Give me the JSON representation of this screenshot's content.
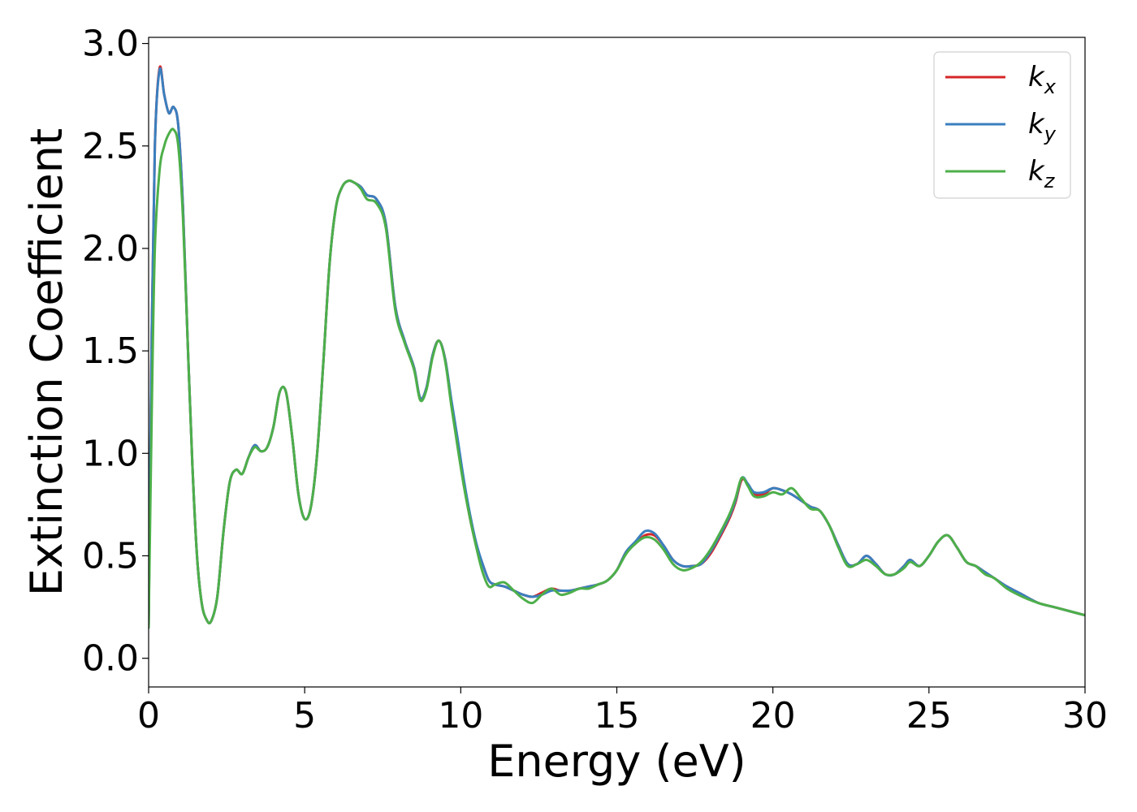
{
  "chart_data": {
    "type": "line",
    "xlabel": "Energy (eV)",
    "ylabel": "Extinction Coefficient",
    "xlim": [
      0,
      30
    ],
    "ylim": [
      -0.14,
      3.03
    ],
    "xticks": [
      0,
      5,
      10,
      15,
      20,
      25,
      30
    ],
    "xtick_labels": [
      "0",
      "5",
      "10",
      "15",
      "20",
      "25",
      "30"
    ],
    "yticks": [
      0.0,
      0.5,
      1.0,
      1.5,
      2.0,
      2.5,
      3.0
    ],
    "ytick_labels": [
      "0.0",
      "0.5",
      "1.0",
      "1.5",
      "2.0",
      "2.5",
      "3.0"
    ],
    "grid": false,
    "legend_position": "top-right",
    "series": [
      {
        "name": "k_x",
        "label_main": "k",
        "label_sub": "x",
        "color": "#d62728",
        "x": [
          0,
          0.1,
          0.2,
          0.35,
          0.5,
          0.65,
          0.8,
          0.95,
          1.1,
          1.25,
          1.4,
          1.55,
          1.7,
          1.85,
          2.0,
          2.2,
          2.4,
          2.6,
          2.8,
          3.0,
          3.2,
          3.4,
          3.6,
          3.8,
          4.0,
          4.2,
          4.4,
          4.6,
          4.8,
          5.0,
          5.2,
          5.4,
          5.6,
          5.8,
          6.0,
          6.2,
          6.4,
          6.6,
          6.8,
          7.0,
          7.3,
          7.6,
          7.9,
          8.2,
          8.5,
          8.7,
          8.9,
          9.1,
          9.3,
          9.5,
          9.7,
          9.9,
          10.1,
          10.3,
          10.5,
          10.7,
          10.9,
          11.1,
          11.4,
          11.7,
          12.0,
          12.3,
          12.6,
          12.9,
          13.2,
          13.5,
          13.8,
          14.1,
          14.4,
          14.7,
          15.0,
          15.3,
          15.6,
          15.9,
          16.2,
          16.5,
          16.8,
          17.1,
          17.4,
          17.7,
          18.0,
          18.3,
          18.6,
          18.8,
          19.0,
          19.2,
          19.4,
          19.7,
          20.0,
          20.3,
          20.6,
          20.9,
          21.2,
          21.5,
          21.8,
          22.1,
          22.4,
          22.7,
          23.0,
          23.3,
          23.6,
          23.9,
          24.2,
          24.4,
          24.7,
          25.0,
          25.3,
          25.6,
          25.9,
          26.2,
          26.5,
          26.8,
          27.1,
          27.5,
          28.0,
          28.5,
          29.0,
          29.5,
          30.0
        ],
        "y": [
          0.15,
          1.6,
          2.5,
          2.88,
          2.75,
          2.66,
          2.69,
          2.6,
          2.2,
          1.55,
          0.95,
          0.5,
          0.27,
          0.19,
          0.18,
          0.3,
          0.62,
          0.86,
          0.92,
          0.9,
          0.98,
          1.04,
          1.01,
          1.03,
          1.13,
          1.3,
          1.3,
          1.08,
          0.8,
          0.68,
          0.74,
          1.0,
          1.45,
          1.93,
          2.2,
          2.3,
          2.33,
          2.32,
          2.3,
          2.26,
          2.24,
          2.12,
          1.72,
          1.55,
          1.42,
          1.27,
          1.32,
          1.48,
          1.55,
          1.46,
          1.25,
          1.05,
          0.85,
          0.68,
          0.55,
          0.46,
          0.38,
          0.36,
          0.35,
          0.33,
          0.31,
          0.3,
          0.32,
          0.34,
          0.33,
          0.33,
          0.34,
          0.35,
          0.36,
          0.38,
          0.43,
          0.52,
          0.56,
          0.6,
          0.6,
          0.55,
          0.48,
          0.45,
          0.45,
          0.46,
          0.51,
          0.59,
          0.68,
          0.76,
          0.87,
          0.85,
          0.8,
          0.8,
          0.83,
          0.82,
          0.8,
          0.77,
          0.74,
          0.72,
          0.65,
          0.55,
          0.46,
          0.46,
          0.5,
          0.46,
          0.41,
          0.41,
          0.45,
          0.48,
          0.45,
          0.5,
          0.57,
          0.6,
          0.54,
          0.47,
          0.45,
          0.42,
          0.39,
          0.35,
          0.31,
          0.27,
          0.25,
          0.23,
          0.21
        ]
      },
      {
        "name": "k_y",
        "label_main": "k",
        "label_sub": "y",
        "color": "#3a7fbf",
        "x": [
          0,
          0.1,
          0.2,
          0.35,
          0.5,
          0.65,
          0.8,
          0.95,
          1.1,
          1.25,
          1.4,
          1.55,
          1.7,
          1.85,
          2.0,
          2.2,
          2.4,
          2.6,
          2.8,
          3.0,
          3.2,
          3.4,
          3.6,
          3.8,
          4.0,
          4.2,
          4.4,
          4.6,
          4.8,
          5.0,
          5.2,
          5.4,
          5.6,
          5.8,
          6.0,
          6.2,
          6.4,
          6.6,
          6.8,
          7.0,
          7.3,
          7.6,
          7.9,
          8.2,
          8.5,
          8.7,
          8.9,
          9.1,
          9.3,
          9.5,
          9.7,
          9.9,
          10.1,
          10.3,
          10.5,
          10.7,
          10.9,
          11.1,
          11.4,
          11.7,
          12.0,
          12.3,
          12.6,
          12.9,
          13.2,
          13.5,
          13.8,
          14.1,
          14.4,
          14.7,
          15.0,
          15.3,
          15.6,
          15.9,
          16.2,
          16.5,
          16.8,
          17.1,
          17.4,
          17.7,
          18.0,
          18.3,
          18.6,
          18.8,
          19.0,
          19.2,
          19.4,
          19.7,
          20.0,
          20.3,
          20.6,
          20.9,
          21.2,
          21.5,
          21.8,
          22.1,
          22.4,
          22.7,
          23.0,
          23.3,
          23.6,
          23.9,
          24.2,
          24.4,
          24.7,
          25.0,
          25.3,
          25.6,
          25.9,
          26.2,
          26.5,
          26.8,
          27.1,
          27.5,
          28.0,
          28.5,
          29.0,
          29.5,
          30.0
        ],
        "y": [
          0.15,
          1.6,
          2.5,
          2.87,
          2.75,
          2.66,
          2.69,
          2.6,
          2.2,
          1.55,
          0.95,
          0.5,
          0.27,
          0.19,
          0.18,
          0.3,
          0.62,
          0.86,
          0.92,
          0.9,
          0.98,
          1.04,
          1.01,
          1.03,
          1.13,
          1.3,
          1.3,
          1.08,
          0.8,
          0.68,
          0.74,
          1.0,
          1.45,
          1.93,
          2.2,
          2.3,
          2.33,
          2.32,
          2.3,
          2.26,
          2.24,
          2.12,
          1.72,
          1.55,
          1.42,
          1.27,
          1.32,
          1.48,
          1.55,
          1.46,
          1.26,
          1.07,
          0.87,
          0.7,
          0.56,
          0.46,
          0.38,
          0.36,
          0.35,
          0.33,
          0.31,
          0.3,
          0.31,
          0.33,
          0.33,
          0.33,
          0.34,
          0.35,
          0.36,
          0.38,
          0.43,
          0.52,
          0.57,
          0.62,
          0.61,
          0.55,
          0.48,
          0.45,
          0.45,
          0.46,
          0.52,
          0.6,
          0.69,
          0.77,
          0.88,
          0.85,
          0.81,
          0.81,
          0.83,
          0.82,
          0.8,
          0.77,
          0.74,
          0.72,
          0.65,
          0.55,
          0.46,
          0.46,
          0.5,
          0.46,
          0.41,
          0.41,
          0.45,
          0.48,
          0.45,
          0.5,
          0.57,
          0.6,
          0.54,
          0.47,
          0.45,
          0.42,
          0.39,
          0.35,
          0.31,
          0.27,
          0.25,
          0.23,
          0.21
        ]
      },
      {
        "name": "k_z",
        "label_main": "k",
        "label_sub": "z",
        "color": "#4daf4a",
        "x": [
          0,
          0.1,
          0.2,
          0.35,
          0.5,
          0.65,
          0.8,
          0.95,
          1.1,
          1.25,
          1.4,
          1.55,
          1.7,
          1.85,
          2.0,
          2.2,
          2.4,
          2.6,
          2.8,
          3.0,
          3.2,
          3.4,
          3.6,
          3.8,
          4.0,
          4.2,
          4.4,
          4.6,
          4.8,
          5.0,
          5.2,
          5.4,
          5.6,
          5.8,
          6.0,
          6.2,
          6.4,
          6.6,
          6.8,
          7.0,
          7.3,
          7.6,
          7.9,
          8.2,
          8.5,
          8.7,
          8.9,
          9.1,
          9.3,
          9.5,
          9.7,
          9.9,
          10.1,
          10.3,
          10.5,
          10.7,
          10.9,
          11.1,
          11.4,
          11.7,
          12.0,
          12.3,
          12.6,
          12.9,
          13.2,
          13.5,
          13.8,
          14.1,
          14.4,
          14.7,
          15.0,
          15.3,
          15.6,
          15.9,
          16.2,
          16.5,
          16.8,
          17.1,
          17.4,
          17.7,
          18.0,
          18.3,
          18.6,
          18.8,
          19.0,
          19.2,
          19.4,
          19.7,
          20.0,
          20.3,
          20.6,
          20.9,
          21.2,
          21.5,
          21.8,
          22.1,
          22.4,
          22.7,
          23.0,
          23.3,
          23.6,
          23.9,
          24.2,
          24.4,
          24.7,
          25.0,
          25.3,
          25.6,
          25.9,
          26.2,
          26.5,
          26.8,
          27.1,
          27.5,
          28.0,
          28.5,
          29.0,
          29.5,
          30.0
        ],
        "y": [
          0.15,
          1.2,
          2.0,
          2.38,
          2.5,
          2.56,
          2.58,
          2.5,
          2.15,
          1.55,
          0.95,
          0.5,
          0.27,
          0.19,
          0.18,
          0.3,
          0.62,
          0.86,
          0.92,
          0.9,
          0.98,
          1.03,
          1.01,
          1.03,
          1.13,
          1.3,
          1.3,
          1.08,
          0.8,
          0.68,
          0.74,
          1.0,
          1.45,
          1.93,
          2.2,
          2.3,
          2.33,
          2.32,
          2.29,
          2.24,
          2.22,
          2.1,
          1.7,
          1.54,
          1.41,
          1.26,
          1.31,
          1.47,
          1.55,
          1.45,
          1.23,
          1.03,
          0.84,
          0.68,
          0.54,
          0.42,
          0.35,
          0.36,
          0.37,
          0.33,
          0.29,
          0.27,
          0.31,
          0.34,
          0.31,
          0.32,
          0.34,
          0.34,
          0.36,
          0.38,
          0.43,
          0.51,
          0.56,
          0.59,
          0.58,
          0.53,
          0.46,
          0.43,
          0.44,
          0.47,
          0.53,
          0.61,
          0.7,
          0.78,
          0.88,
          0.84,
          0.79,
          0.79,
          0.81,
          0.8,
          0.83,
          0.78,
          0.73,
          0.72,
          0.65,
          0.54,
          0.45,
          0.46,
          0.48,
          0.45,
          0.41,
          0.41,
          0.44,
          0.47,
          0.45,
          0.5,
          0.57,
          0.6,
          0.54,
          0.47,
          0.45,
          0.41,
          0.39,
          0.34,
          0.3,
          0.27,
          0.25,
          0.23,
          0.21
        ]
      }
    ]
  }
}
